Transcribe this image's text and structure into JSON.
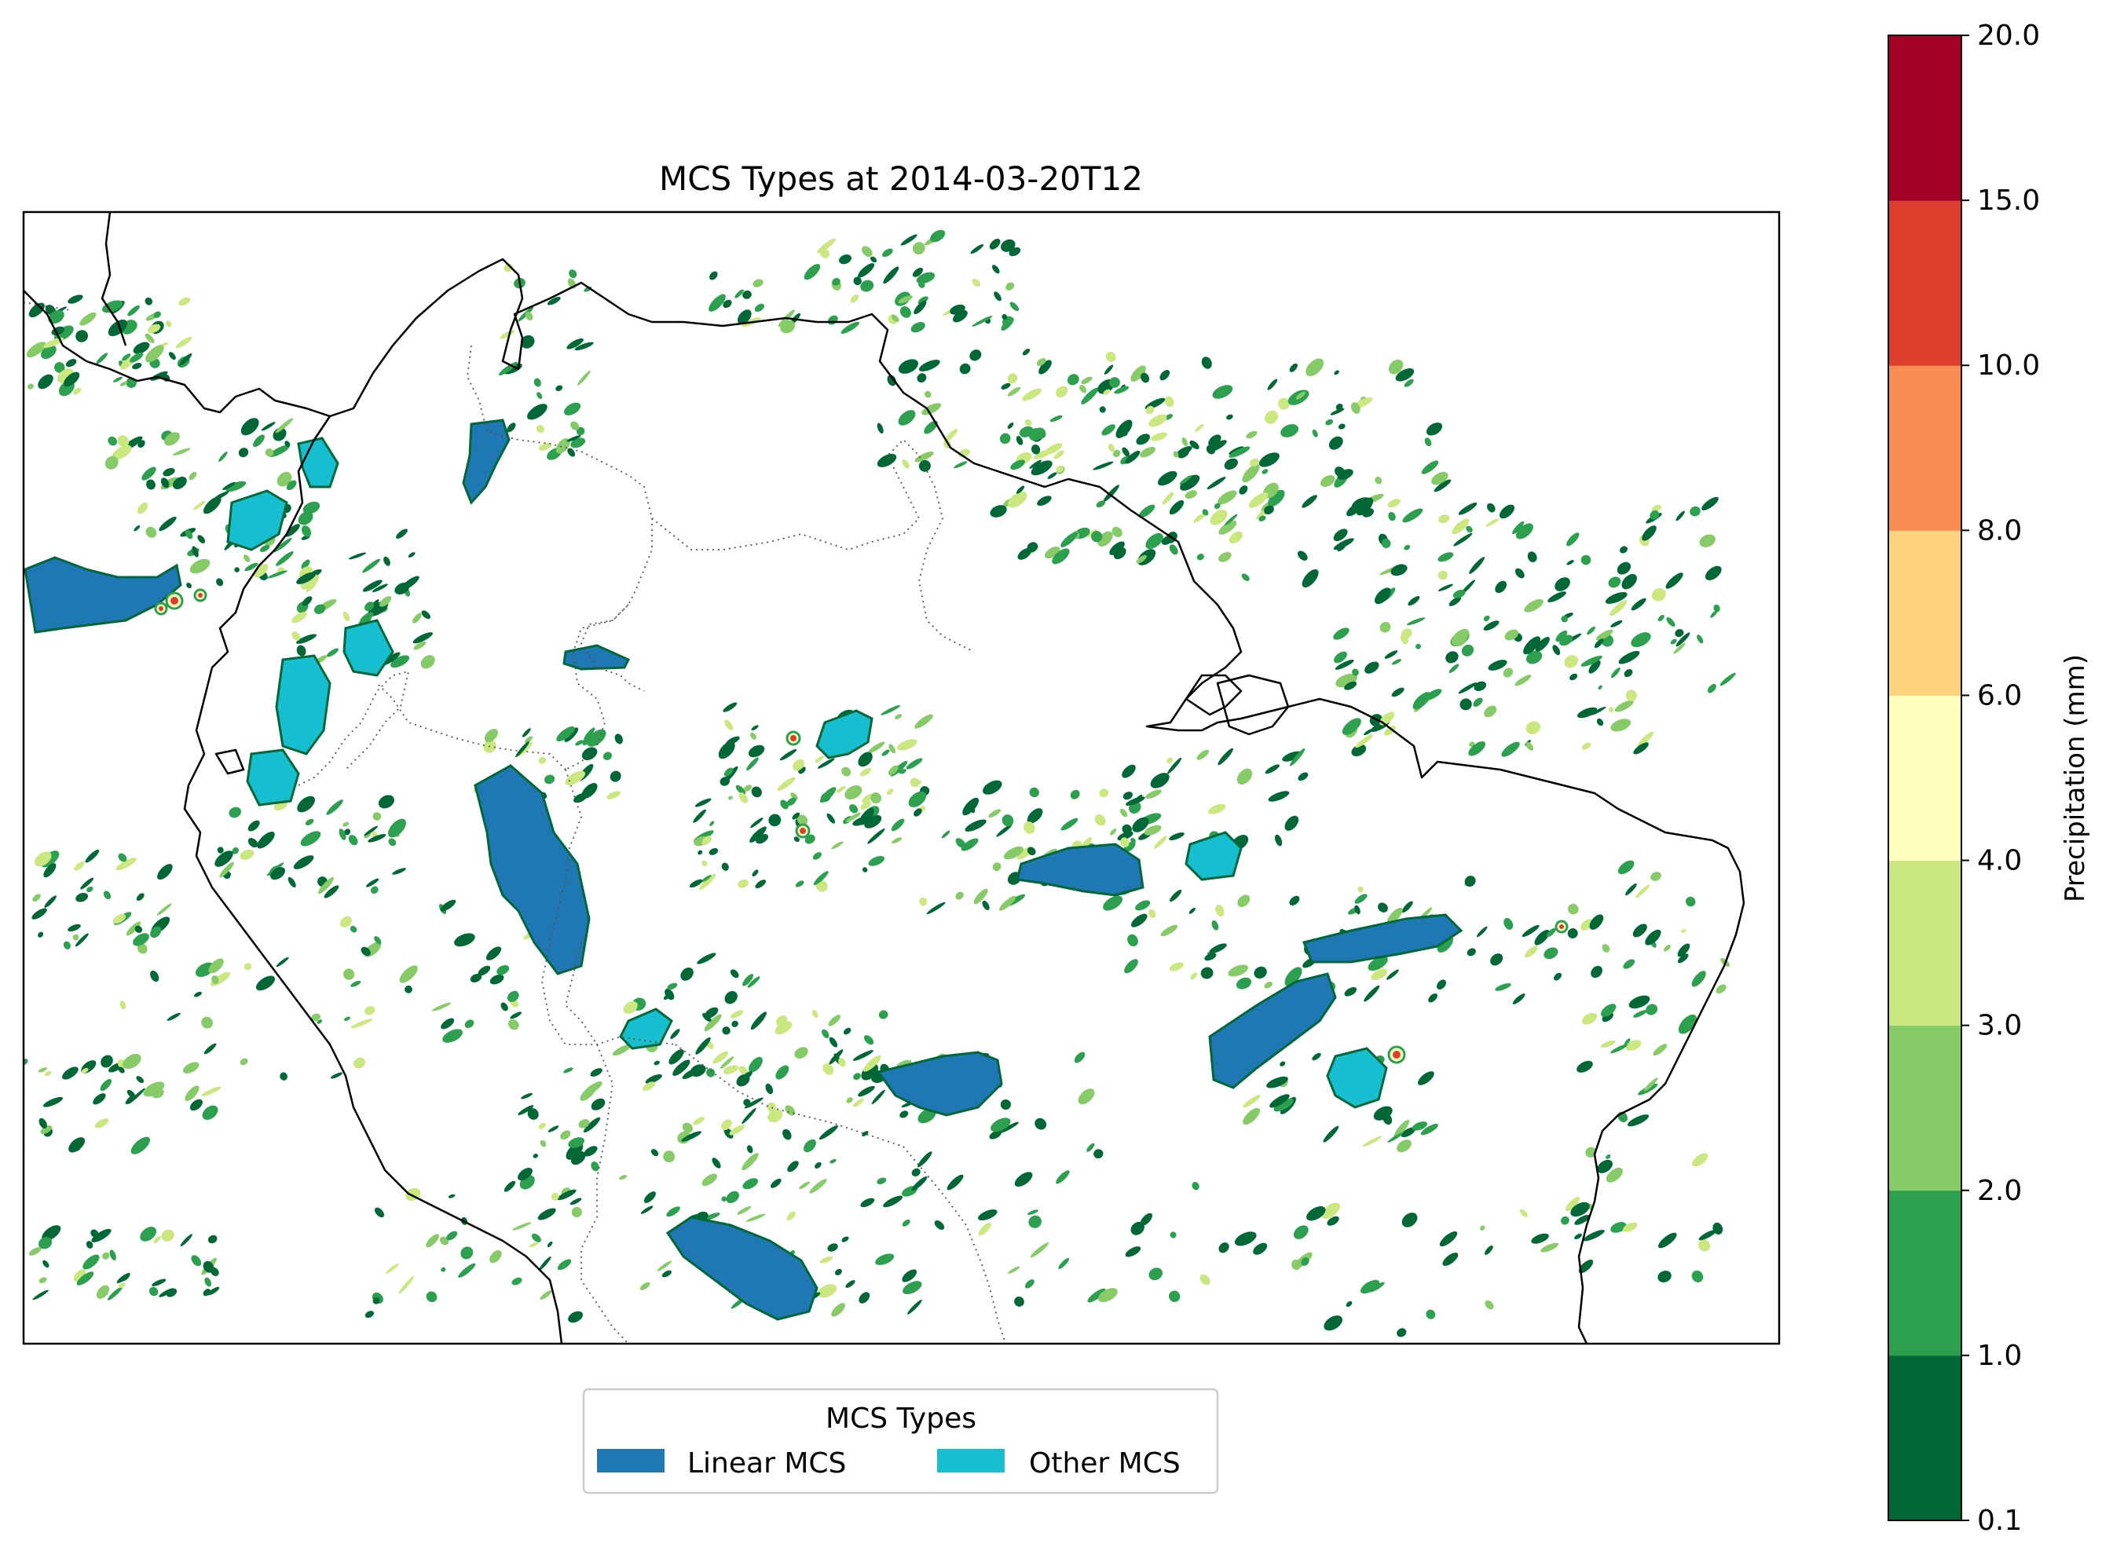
{
  "title": "MCS Types at 2014-03-20T12",
  "legend": {
    "title": "MCS Types",
    "items": [
      {
        "label": "Linear MCS",
        "color": "#1f77b4"
      },
      {
        "label": "Other MCS",
        "color": "#17becf"
      }
    ]
  },
  "colorbar": {
    "label": "Precipitation (mm)",
    "colormap": "RdYlGn_r",
    "levels": [
      "0.1",
      "1.0",
      "2.0",
      "3.0",
      "4.0",
      "6.0",
      "8.0",
      "10.0",
      "15.0",
      "20.0"
    ],
    "colors": [
      "#006837",
      "#2da050",
      "#86cb67",
      "#cbe880",
      "#fefebd",
      "#fed27f",
      "#fb8c52",
      "#dc3e2d",
      "#a50026"
    ]
  },
  "map": {
    "features": [
      "coastlines",
      "country borders (dotted)"
    ],
    "precip_color_low": "#006837",
    "precip_color_mid": "#2da050",
    "precip_color_light": "#86cb67",
    "precip_color_pale": "#cbe880",
    "precip_color_high": "#dc3e2d"
  }
}
